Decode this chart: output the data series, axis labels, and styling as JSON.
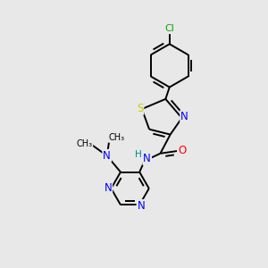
{
  "background_color": "#e8e8e8",
  "atom_colors": {
    "C": "#000000",
    "N": "#0000ff",
    "O": "#ff0000",
    "S": "#cccc00",
    "Cl": "#00aa00",
    "H": "#008888"
  }
}
